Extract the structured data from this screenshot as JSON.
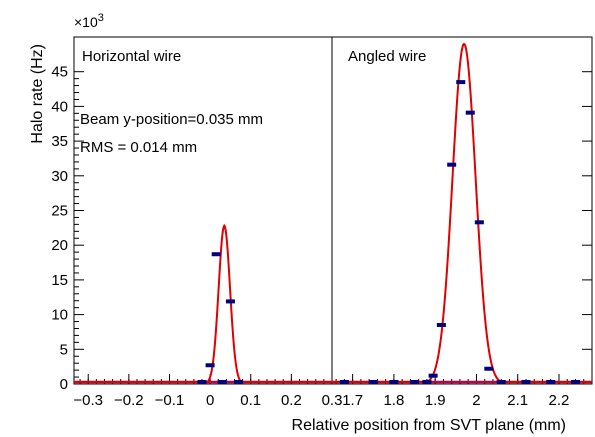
{
  "chart_data": {
    "type": "scatter",
    "multiplier_label": "×10",
    "multiplier_exponent": "3",
    "xlabel": "Relative position from SVT plane (mm)",
    "ylabel": "Halo rate (Hz)",
    "yticks": [
      "0",
      "5",
      "10",
      "15",
      "20",
      "25",
      "30",
      "35",
      "40",
      "45"
    ],
    "ylim": [
      0,
      50
    ],
    "grid": false,
    "colors": {
      "points": "#00007f",
      "fit": "#e00000",
      "baseline": "#c0004a"
    },
    "panels": [
      {
        "title": "Horizontal wire",
        "annotations": [
          "Beam y-position=0.035 mm",
          "RMS = 0.014 mm"
        ],
        "xlim": [
          -0.335,
          0.3
        ],
        "xticks": [
          "−0.3",
          "−0.2",
          "−0.1",
          "0",
          "0.1",
          "0.2",
          "0.3"
        ],
        "xtick_values": [
          -0.3,
          -0.2,
          -0.1,
          0,
          0.1,
          0.2,
          0.3
        ],
        "points": [
          [
            0.0,
            2.7
          ],
          [
            0.015,
            18.7
          ],
          [
            0.03,
            0.15
          ],
          [
            0.05,
            11.9
          ],
          [
            0.07,
            0.1
          ],
          [
            -0.02,
            0.2
          ]
        ],
        "fit": {
          "mean": 0.035,
          "sigma": 0.014,
          "amplitude": 22.8
        }
      },
      {
        "title": "Angled wire",
        "annotations": [],
        "xlim": [
          1.65,
          2.28
        ],
        "xticks": [
          "1.7",
          "1.8",
          "1.9",
          "2",
          "2.1",
          "2.2"
        ],
        "xtick_values": [
          1.7,
          1.8,
          1.9,
          2.0,
          2.1,
          2.2
        ],
        "points": [
          [
            1.68,
            0.0
          ],
          [
            1.75,
            0.0
          ],
          [
            1.8,
            0.0
          ],
          [
            1.85,
            0.05
          ],
          [
            1.88,
            0.3
          ],
          [
            1.895,
            1.2
          ],
          [
            1.915,
            8.5
          ],
          [
            1.94,
            31.6
          ],
          [
            1.962,
            43.5
          ],
          [
            1.985,
            39.1
          ],
          [
            2.007,
            23.3
          ],
          [
            2.03,
            2.2
          ],
          [
            2.06,
            0.1
          ],
          [
            2.12,
            0.0
          ],
          [
            2.18,
            0.0
          ],
          [
            2.24,
            0.0
          ]
        ],
        "fit": {
          "mean": 1.97,
          "sigma": 0.028,
          "amplitude": 49.0
        }
      }
    ]
  }
}
